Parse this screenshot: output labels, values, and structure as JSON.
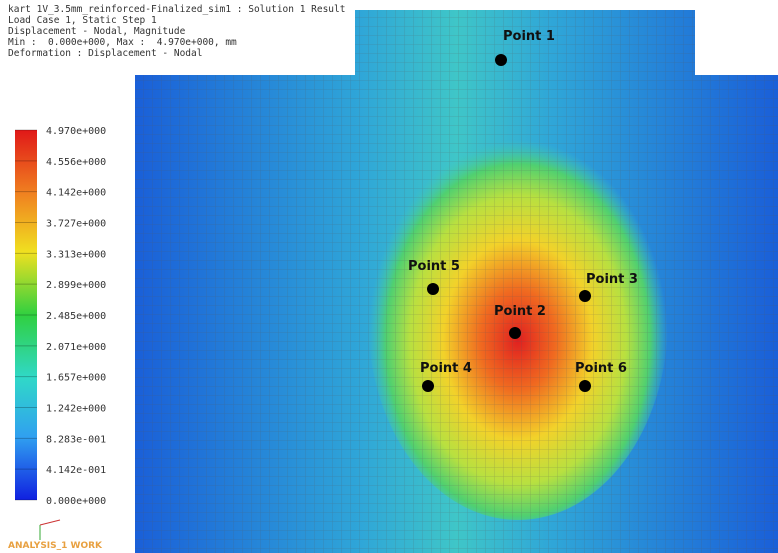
{
  "header": {
    "lines": [
      "kart 1V_3.5mm_reinforced-Finalized_sim1 : Solution 1 Result",
      "Load Case 1, Static Step 1",
      "Displacement - Nodal, Magnitude",
      "Min :  0.000e+000, Max :  4.970e+000, mm",
      "Deformation : Displacement - Nodal"
    ]
  },
  "legend": {
    "labels": [
      "4.970e+000",
      "4.556e+000",
      "4.142e+000",
      "3.727e+000",
      "3.313e+000",
      "2.899e+000",
      "2.485e+000",
      "2.071e+000",
      "1.657e+000",
      "1.242e+000",
      "8.283e-001",
      "4.142e-001",
      "0.000e+000"
    ]
  },
  "points": [
    {
      "label": "Point 1"
    },
    {
      "label": "Point 2"
    },
    {
      "label": "Point 3"
    },
    {
      "label": "Point 4"
    },
    {
      "label": "Point 5"
    },
    {
      "label": "Point 6"
    }
  ],
  "footer": {
    "label": "ANALYSIS_1 WORK"
  }
}
